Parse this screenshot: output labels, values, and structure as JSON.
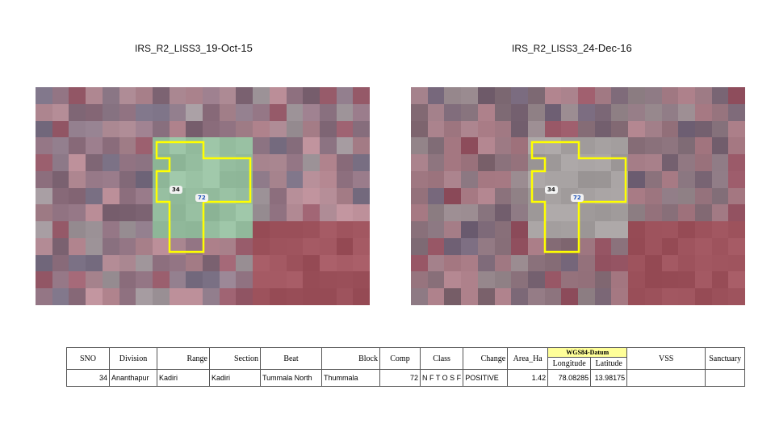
{
  "panels": [
    {
      "title_prefix": "IRS_R2_LISS3_",
      "title_date": "19-Oct-15",
      "plot_id_black": "34",
      "plot_id_blue": "72"
    },
    {
      "title_prefix": "IRS_R2_LISS3_",
      "title_date": "24-Dec-16",
      "plot_id_black": "34",
      "plot_id_blue": "72"
    }
  ],
  "colors": {
    "boundary": "#ffff00",
    "datum_fill": "#ffff99"
  },
  "table": {
    "datum_label": "WGS84-Datum",
    "headers": {
      "sno": "SNO",
      "division": "Division",
      "range": "Range",
      "section": "Section",
      "beat": "Beat",
      "block": "Block",
      "comp": "Comp",
      "class": "Class",
      "change": "Change",
      "area": "Area_Ha",
      "longitude": "Longitude",
      "latitude": "Latitude",
      "vss": "VSS",
      "sanctuary": "Sanctuary"
    },
    "row": {
      "sno": "34",
      "division": "Ananthapur",
      "range": "Kadiri",
      "section": "Kadiri",
      "beat": "Tummala North",
      "block": "Thummala",
      "comp": "72",
      "class": "N F T O S F",
      "change": "POSITIVE",
      "area": "1.42",
      "longitude": "78.08285",
      "latitude": "13.98175",
      "vss": "",
      "sanctuary": ""
    }
  }
}
